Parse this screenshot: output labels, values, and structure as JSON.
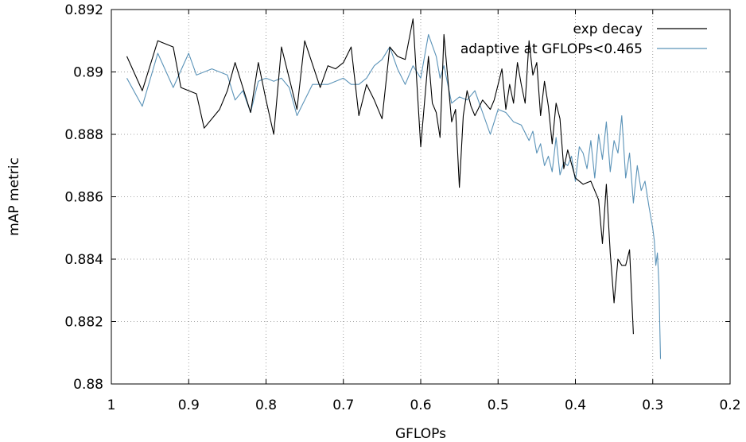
{
  "chart_data": {
    "type": "line",
    "xlabel": "GFLOPs",
    "ylabel": "mAP metric",
    "xlim": [
      1,
      0.2
    ],
    "ylim": [
      0.88,
      0.892
    ],
    "x_reversed": true,
    "xticks": [
      1,
      0.9,
      0.8,
      0.7,
      0.6,
      0.5,
      0.4,
      0.3,
      0.2
    ],
    "xtick_labels": [
      "1",
      "0.9",
      "0.8",
      "0.7",
      "0.6",
      "0.5",
      "0.4",
      "0.3",
      "0.2"
    ],
    "yticks": [
      0.88,
      0.882,
      0.884,
      0.886,
      0.888,
      0.89,
      0.892
    ],
    "ytick_labels": [
      "0.88",
      "0.882",
      "0.884",
      "0.886",
      "0.888",
      "0.89",
      "0.892"
    ],
    "grid": true,
    "legend_position": "top-right",
    "series": [
      {
        "name": "exp decay",
        "color": "#000000",
        "x": [
          0.98,
          0.96,
          0.94,
          0.92,
          0.91,
          0.89,
          0.88,
          0.86,
          0.85,
          0.84,
          0.82,
          0.81,
          0.8,
          0.79,
          0.78,
          0.76,
          0.75,
          0.73,
          0.72,
          0.71,
          0.7,
          0.69,
          0.68,
          0.67,
          0.66,
          0.65,
          0.64,
          0.63,
          0.62,
          0.61,
          0.6,
          0.59,
          0.585,
          0.58,
          0.575,
          0.57,
          0.56,
          0.555,
          0.55,
          0.545,
          0.54,
          0.535,
          0.53,
          0.52,
          0.51,
          0.505,
          0.5,
          0.495,
          0.49,
          0.485,
          0.48,
          0.475,
          0.47,
          0.465,
          0.46,
          0.455,
          0.45,
          0.445,
          0.44,
          0.435,
          0.43,
          0.425,
          0.42,
          0.415,
          0.41,
          0.4,
          0.39,
          0.38,
          0.37,
          0.365,
          0.36,
          0.355,
          0.35,
          0.345,
          0.34,
          0.335,
          0.33,
          0.325
        ],
        "y": [
          0.8905,
          0.8894,
          0.891,
          0.8908,
          0.8895,
          0.8893,
          0.8882,
          0.8888,
          0.8894,
          0.8903,
          0.8887,
          0.8903,
          0.8891,
          0.888,
          0.8908,
          0.8888,
          0.891,
          0.8895,
          0.8902,
          0.8901,
          0.8903,
          0.8908,
          0.8886,
          0.8896,
          0.8891,
          0.8885,
          0.8908,
          0.8905,
          0.8904,
          0.8917,
          0.8876,
          0.8905,
          0.889,
          0.8887,
          0.8879,
          0.8912,
          0.8884,
          0.8888,
          0.8863,
          0.8886,
          0.8894,
          0.8889,
          0.8886,
          0.8891,
          0.8888,
          0.8891,
          0.8896,
          0.8901,
          0.8888,
          0.8896,
          0.889,
          0.8903,
          0.8896,
          0.889,
          0.891,
          0.8899,
          0.8903,
          0.8886,
          0.8897,
          0.8889,
          0.8877,
          0.889,
          0.8885,
          0.8869,
          0.8875,
          0.8866,
          0.8864,
          0.8865,
          0.8859,
          0.8845,
          0.8864,
          0.8842,
          0.8826,
          0.884,
          0.8838,
          0.8838,
          0.8843,
          0.8816
        ]
      },
      {
        "name": "adaptive at GFLOPs<0.465",
        "color": "#5b93b8",
        "x": [
          0.98,
          0.96,
          0.94,
          0.92,
          0.9,
          0.89,
          0.87,
          0.85,
          0.84,
          0.83,
          0.82,
          0.81,
          0.8,
          0.79,
          0.78,
          0.77,
          0.76,
          0.74,
          0.72,
          0.7,
          0.69,
          0.68,
          0.67,
          0.66,
          0.65,
          0.64,
          0.63,
          0.62,
          0.61,
          0.6,
          0.59,
          0.58,
          0.575,
          0.57,
          0.56,
          0.55,
          0.54,
          0.53,
          0.52,
          0.51,
          0.5,
          0.49,
          0.48,
          0.47,
          0.46,
          0.455,
          0.45,
          0.445,
          0.44,
          0.435,
          0.43,
          0.425,
          0.42,
          0.415,
          0.41,
          0.405,
          0.4,
          0.395,
          0.39,
          0.385,
          0.38,
          0.375,
          0.37,
          0.365,
          0.36,
          0.355,
          0.35,
          0.345,
          0.34,
          0.335,
          0.33,
          0.325,
          0.32,
          0.315,
          0.31,
          0.305,
          0.3,
          0.298,
          0.296,
          0.294,
          0.292,
          0.29
        ],
        "y": [
          0.8898,
          0.8889,
          0.8906,
          0.8895,
          0.8906,
          0.8899,
          0.8901,
          0.8899,
          0.8891,
          0.8894,
          0.8887,
          0.8897,
          0.8898,
          0.8897,
          0.8898,
          0.8895,
          0.8886,
          0.8896,
          0.8896,
          0.8898,
          0.8896,
          0.8896,
          0.8898,
          0.8902,
          0.8904,
          0.8908,
          0.8901,
          0.8896,
          0.8902,
          0.8898,
          0.8912,
          0.8905,
          0.8898,
          0.8902,
          0.889,
          0.8892,
          0.8891,
          0.8894,
          0.8887,
          0.888,
          0.8888,
          0.8887,
          0.8884,
          0.8883,
          0.8878,
          0.8881,
          0.8874,
          0.8877,
          0.887,
          0.8873,
          0.8868,
          0.8879,
          0.8867,
          0.8871,
          0.887,
          0.8873,
          0.8865,
          0.8876,
          0.8874,
          0.8869,
          0.8878,
          0.8866,
          0.888,
          0.8872,
          0.8884,
          0.8868,
          0.8878,
          0.8874,
          0.8886,
          0.8866,
          0.8874,
          0.8858,
          0.887,
          0.8862,
          0.8865,
          0.8857,
          0.885,
          0.8846,
          0.8838,
          0.8842,
          0.8832,
          0.8808
        ]
      }
    ]
  }
}
